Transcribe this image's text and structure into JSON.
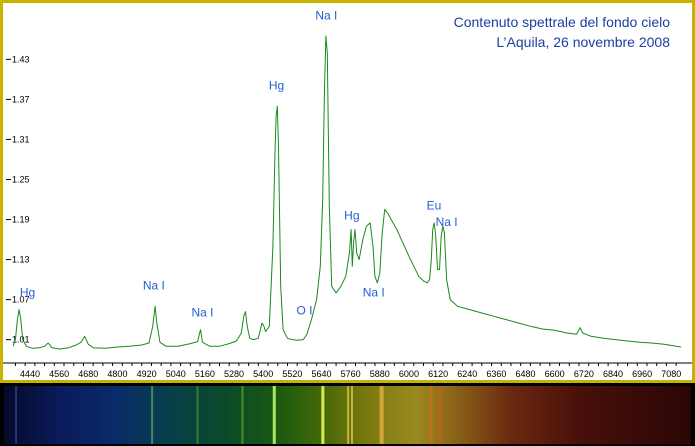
{
  "chart_data": {
    "type": "line",
    "title": [
      "Contenuto spettrale del fondo cielo",
      "L’Aquila, 26 novembre 2008"
    ],
    "xlabel": "",
    "ylabel": "",
    "xlim": [
      4370,
      7120
    ],
    "ylim": [
      0.975,
      1.51
    ],
    "x_ticks": [
      4440,
      4560,
      4680,
      4800,
      4920,
      5040,
      5160,
      5280,
      5400,
      5520,
      5640,
      5760,
      5880,
      6000,
      6120,
      6240,
      6360,
      6480,
      6600,
      6720,
      6840,
      6960,
      7080
    ],
    "y_ticks": [
      1.01,
      1.07,
      1.13,
      1.19,
      1.25,
      1.31,
      1.37,
      1.43
    ],
    "y_tick_labels": [
      "1.01",
      "1.07",
      "1.13",
      "1.19",
      "1.25",
      "1.31",
      "1.37",
      "1.43"
    ],
    "grid": false,
    "line_color": "#1a8a1a",
    "series": [
      {
        "values": [
          [
            4370,
            1.0
          ],
          [
            4380,
            1.01
          ],
          [
            4388,
            1.04
          ],
          [
            4395,
            1.055
          ],
          [
            4402,
            1.04
          ],
          [
            4410,
            1.01
          ],
          [
            4425,
            1.0
          ],
          [
            4450,
            0.997
          ],
          [
            4480,
            0.998
          ],
          [
            4500,
            1.0
          ],
          [
            4515,
            1.005
          ],
          [
            4530,
            0.998
          ],
          [
            4560,
            0.996
          ],
          [
            4600,
            0.998
          ],
          [
            4630,
            1.002
          ],
          [
            4650,
            1.006
          ],
          [
            4665,
            1.015
          ],
          [
            4680,
            1.003
          ],
          [
            4700,
            0.998
          ],
          [
            4750,
            0.997
          ],
          [
            4800,
            0.999
          ],
          [
            4850,
            1.0
          ],
          [
            4900,
            1.002
          ],
          [
            4930,
            1.005
          ],
          [
            4945,
            1.03
          ],
          [
            4955,
            1.06
          ],
          [
            4962,
            1.035
          ],
          [
            4975,
            1.006
          ],
          [
            5000,
            1.0
          ],
          [
            5050,
            1.0
          ],
          [
            5100,
            1.004
          ],
          [
            5130,
            1.007
          ],
          [
            5142,
            1.025
          ],
          [
            5150,
            1.006
          ],
          [
            5180,
            1.0
          ],
          [
            5220,
            1.0
          ],
          [
            5260,
            1.004
          ],
          [
            5290,
            1.008
          ],
          [
            5310,
            1.02
          ],
          [
            5320,
            1.045
          ],
          [
            5327,
            1.052
          ],
          [
            5334,
            1.03
          ],
          [
            5345,
            1.012
          ],
          [
            5360,
            1.01
          ],
          [
            5380,
            1.012
          ],
          [
            5395,
            1.035
          ],
          [
            5403,
            1.03
          ],
          [
            5410,
            1.022
          ],
          [
            5425,
            1.03
          ],
          [
            5440,
            1.15
          ],
          [
            5448,
            1.285
          ],
          [
            5453,
            1.345
          ],
          [
            5458,
            1.36
          ],
          [
            5463,
            1.3
          ],
          [
            5472,
            1.09
          ],
          [
            5482,
            1.025
          ],
          [
            5500,
            1.012
          ],
          [
            5520,
            1.01
          ],
          [
            5540,
            1.009
          ],
          [
            5565,
            1.01
          ],
          [
            5580,
            1.018
          ],
          [
            5600,
            1.042
          ],
          [
            5620,
            1.07
          ],
          [
            5635,
            1.12
          ],
          [
            5645,
            1.22
          ],
          [
            5652,
            1.38
          ],
          [
            5658,
            1.465
          ],
          [
            5664,
            1.44
          ],
          [
            5672,
            1.21
          ],
          [
            5682,
            1.09
          ],
          [
            5700,
            1.08
          ],
          [
            5720,
            1.09
          ],
          [
            5740,
            1.105
          ],
          [
            5755,
            1.14
          ],
          [
            5762,
            1.175
          ],
          [
            5767,
            1.12
          ],
          [
            5772,
            1.155
          ],
          [
            5778,
            1.175
          ],
          [
            5785,
            1.14
          ],
          [
            5795,
            1.13
          ],
          [
            5810,
            1.16
          ],
          [
            5825,
            1.18
          ],
          [
            5840,
            1.185
          ],
          [
            5852,
            1.15
          ],
          [
            5860,
            1.105
          ],
          [
            5870,
            1.095
          ],
          [
            5880,
            1.11
          ],
          [
            5890,
            1.17
          ],
          [
            5900,
            1.205
          ],
          [
            5912,
            1.2
          ],
          [
            5930,
            1.188
          ],
          [
            5950,
            1.175
          ],
          [
            5975,
            1.155
          ],
          [
            6000,
            1.135
          ],
          [
            6020,
            1.12
          ],
          [
            6040,
            1.105
          ],
          [
            6060,
            1.098
          ],
          [
            6075,
            1.095
          ],
          [
            6085,
            1.1
          ],
          [
            6092,
            1.13
          ],
          [
            6098,
            1.175
          ],
          [
            6104,
            1.185
          ],
          [
            6110,
            1.165
          ],
          [
            6118,
            1.115
          ],
          [
            6126,
            1.115
          ],
          [
            6133,
            1.165
          ],
          [
            6140,
            1.18
          ],
          [
            6146,
            1.17
          ],
          [
            6155,
            1.1
          ],
          [
            6170,
            1.07
          ],
          [
            6200,
            1.06
          ],
          [
            6250,
            1.055
          ],
          [
            6300,
            1.05
          ],
          [
            6350,
            1.045
          ],
          [
            6400,
            1.04
          ],
          [
            6450,
            1.035
          ],
          [
            6500,
            1.03
          ],
          [
            6550,
            1.026
          ],
          [
            6600,
            1.024
          ],
          [
            6650,
            1.02
          ],
          [
            6690,
            1.018
          ],
          [
            6705,
            1.028
          ],
          [
            6715,
            1.02
          ],
          [
            6750,
            1.015
          ],
          [
            6800,
            1.012
          ],
          [
            6850,
            1.01
          ],
          [
            6900,
            1.008
          ],
          [
            6950,
            1.006
          ],
          [
            7000,
            1.005
          ],
          [
            7050,
            1.003
          ],
          [
            7100,
            1.0
          ],
          [
            7120,
            0.999
          ]
        ]
      }
    ],
    "annotations": [
      {
        "text": "Hg",
        "x": 4430,
        "y": 1.075
      },
      {
        "text": "Na I",
        "x": 4950,
        "y": 1.085
      },
      {
        "text": "Na I",
        "x": 5150,
        "y": 1.045
      },
      {
        "text": "Hg",
        "x": 5455,
        "y": 1.385
      },
      {
        "text": "O I",
        "x": 5570,
        "y": 1.048
      },
      {
        "text": "Na I",
        "x": 5660,
        "y": 1.49
      },
      {
        "text": "Hg",
        "x": 5765,
        "y": 1.19
      },
      {
        "text": "Na I",
        "x": 5855,
        "y": 1.075
      },
      {
        "text": "Eu",
        "x": 6103,
        "y": 1.205
      },
      {
        "text": "Na I",
        "x": 6155,
        "y": 1.18
      }
    ]
  }
}
